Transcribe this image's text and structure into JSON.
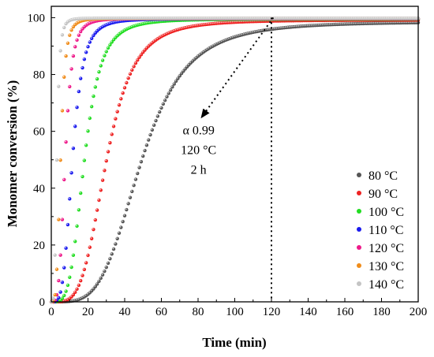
{
  "chart_data": {
    "type": "scatter",
    "xlabel": "Time (min)",
    "ylabel": "Monomer conversion (%)",
    "xlim": [
      0,
      200
    ],
    "ylim": [
      0,
      104
    ],
    "xticks": [
      0,
      20,
      40,
      60,
      80,
      100,
      120,
      140,
      160,
      180,
      200
    ],
    "yticks": [
      0,
      20,
      40,
      60,
      80,
      100
    ],
    "grid": false,
    "legend_position": "bottom-right",
    "marker_step": 1,
    "series": [
      {
        "name": "80 °C",
        "color": "#555555",
        "t50": 49,
        "slope": 15,
        "plateau": 98.6
      },
      {
        "name": "90 °C",
        "color": "#ee2222",
        "t50": 30,
        "slope": 8.5,
        "plateau": 99.2
      },
      {
        "name": "100 °C",
        "color": "#22dd22",
        "t50": 18,
        "slope": 5.2,
        "plateau": 99.5
      },
      {
        "name": "110 °C",
        "color": "#1a1aee",
        "t50": 11.5,
        "slope": 3.3,
        "plateau": 99.6
      },
      {
        "name": "120 °C",
        "color": "#ee1a8a",
        "t50": 7.5,
        "slope": 2.2,
        "plateau": 99.7
      },
      {
        "name": "130 °C",
        "color": "#f08c1a",
        "t50": 5,
        "slope": 1.5,
        "plateau": 99.7
      },
      {
        "name": "140 °C",
        "color": "#c4c4c4",
        "t50": 3,
        "slope": 0.9,
        "plateau": 99.8
      }
    ],
    "annotation": {
      "lines": [
        "α 0.99",
        "120 °C",
        "2 h"
      ],
      "vline_x": 120,
      "arrow_from": [
        121,
        100
      ],
      "arrow_to": [
        82,
        65
      ]
    }
  }
}
